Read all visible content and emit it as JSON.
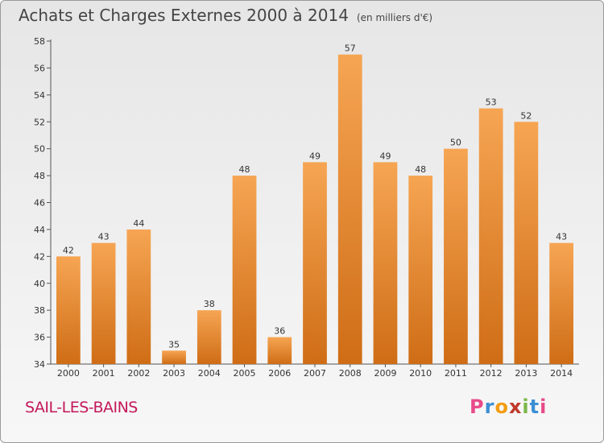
{
  "header": {
    "title": "Achats et Charges Externes 2000 à 2014",
    "subtitle": "(en milliers d'€)"
  },
  "footer": {
    "place": "SAIL-LES-BAINS",
    "brand": "Proxiti"
  },
  "colors": {
    "bar_top": "#f6a553",
    "bar_bottom": "#cf6d16",
    "place": "#c4185a",
    "axis": "#555555"
  },
  "chart_data": {
    "type": "bar",
    "categories": [
      "2000",
      "2001",
      "2002",
      "2003",
      "2004",
      "2005",
      "2006",
      "2007",
      "2008",
      "2009",
      "2010",
      "2011",
      "2012",
      "2013",
      "2014"
    ],
    "values": [
      42,
      43,
      44,
      35,
      38,
      48,
      36,
      49,
      57,
      49,
      48,
      50,
      53,
      52,
      43
    ],
    "ylim": [
      34,
      58
    ],
    "yticks": [
      34,
      36,
      38,
      40,
      42,
      44,
      46,
      48,
      50,
      52,
      54,
      56,
      58
    ],
    "grid": false,
    "data_labels": true
  }
}
